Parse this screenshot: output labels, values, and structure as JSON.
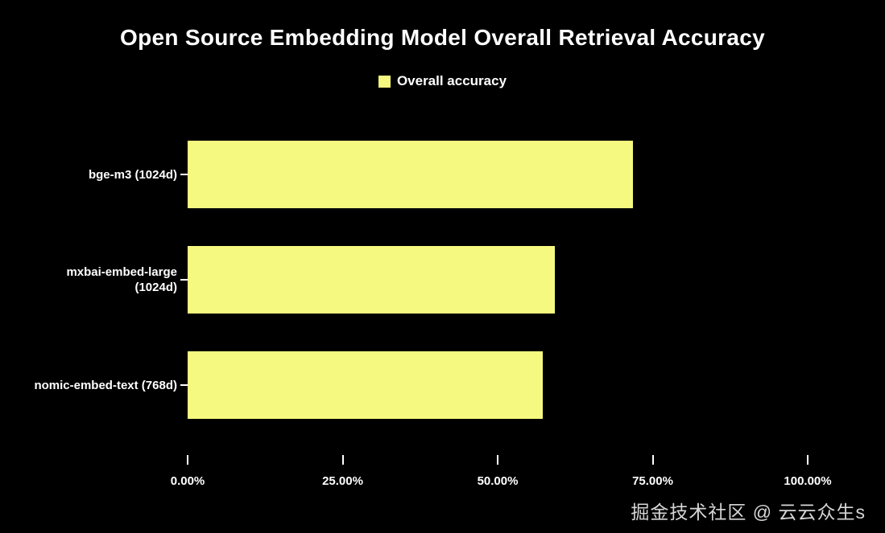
{
  "chart_data": {
    "type": "bar",
    "orientation": "horizontal",
    "title": "Open Source Embedding Model Overall Retrieval Accuracy",
    "legend_label": "Overall accuracy",
    "legend_position": "top-center",
    "categories": [
      "bge-m3 (1024d)",
      "mxbai-embed-large\n(1024d)",
      "nomic-embed-text (768d)"
    ],
    "values": [
      71.8,
      59.2,
      57.3
    ],
    "value_unit": "%",
    "xlim": [
      0,
      100
    ],
    "x_ticks": [
      {
        "value": 0,
        "label": "0.00%"
      },
      {
        "value": 25,
        "label": "25.00%"
      },
      {
        "value": 50,
        "label": "50.00%"
      },
      {
        "value": 75,
        "label": "75.00%"
      },
      {
        "value": 100,
        "label": "100.00%"
      }
    ],
    "grid": false,
    "bar_color": "#f6f97f",
    "background_color": "#000000",
    "text_color": "#ffffff"
  },
  "watermark": {
    "text": "掘金技术社区 @ 云云众生s"
  }
}
